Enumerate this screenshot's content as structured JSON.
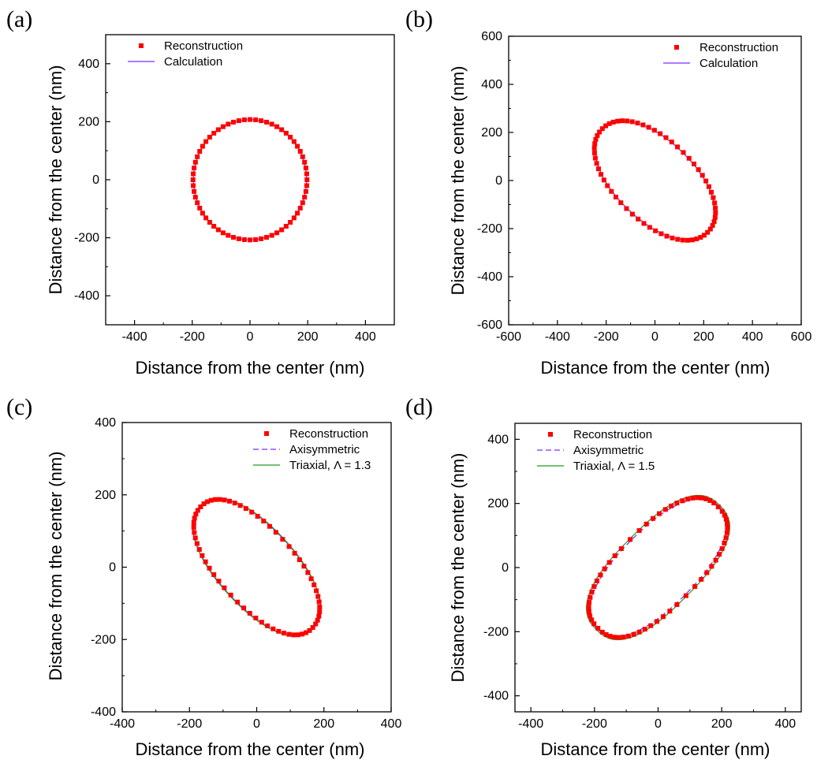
{
  "chart_data": [
    {
      "panel": "(a)",
      "type": "scatter",
      "xlabel": "Distance from the center (nm)",
      "ylabel": "Distance from the center (nm)",
      "xlim": [
        -500,
        500
      ],
      "ylim": [
        -500,
        500
      ],
      "xticks": [
        -400,
        -200,
        0,
        200,
        400
      ],
      "yticks": [
        -400,
        -200,
        0,
        200,
        400
      ],
      "xtick_labels": [
        "-400",
        "-200",
        "0",
        "200",
        "400"
      ],
      "ytick_labels": [
        "-400",
        "-200",
        "0",
        "200",
        "400"
      ],
      "legend_position": "top-left",
      "series": [
        {
          "name": "Reconstruction",
          "kind": "markers",
          "color": "#ff0000",
          "curve": {
            "shape": "ellipse",
            "a": 395,
            "b": 415,
            "rotation_deg": 0,
            "squareness": 0,
            "cx": 0,
            "cy": 0
          },
          "n_points": 64
        },
        {
          "name": "Calculation",
          "kind": "solid",
          "color": "#7b2cff",
          "curve": {
            "shape": "ellipse",
            "a": 392,
            "b": 414,
            "rotation_deg": 0,
            "squareness": 0,
            "cx": 0,
            "cy": 0
          }
        }
      ]
    },
    {
      "panel": "(b)",
      "type": "scatter",
      "xlabel": "Distance from the center (nm)",
      "ylabel": "Distance from the center (nm)",
      "xlim": [
        -600,
        600
      ],
      "ylim": [
        -600,
        600
      ],
      "xticks": [
        -600,
        -400,
        -200,
        0,
        200,
        400,
        600
      ],
      "yticks": [
        -600,
        -400,
        -200,
        0,
        200,
        400,
        600
      ],
      "xtick_labels": [
        "-600",
        "-400",
        "-200",
        "0",
        "200",
        "400",
        "600"
      ],
      "ytick_labels": [
        "-600",
        "-400",
        "-200",
        "0",
        "200",
        "400",
        "600"
      ],
      "legend_position": "top-right",
      "series": [
        {
          "name": "Reconstruction",
          "kind": "markers",
          "color": "#ff0000",
          "curve": {
            "shape": "ellipse",
            "a": 610,
            "b": 330,
            "rotation_deg": -45,
            "squareness": 0.05,
            "cx": 0,
            "cy": 0
          },
          "n_points": 64
        },
        {
          "name": "Calculation",
          "kind": "solid",
          "color": "#7b2cff",
          "curve": {
            "shape": "ellipse",
            "a": 605,
            "b": 325,
            "rotation_deg": -45,
            "squareness": 0.05,
            "cx": 0,
            "cy": 0
          }
        }
      ]
    },
    {
      "panel": "(c)",
      "type": "scatter",
      "xlabel": "Distance from the center (nm)",
      "ylabel": "Distance from the center (nm)",
      "xlim": [
        -400,
        400
      ],
      "ylim": [
        -400,
        400
      ],
      "xticks": [
        -400,
        -200,
        0,
        200,
        400
      ],
      "yticks": [
        -400,
        -200,
        0,
        200,
        400
      ],
      "xtick_labels": [
        "-400",
        "-200",
        "0",
        "200",
        "400"
      ],
      "ytick_labels": [
        "-400",
        "-200",
        "0",
        "200",
        "400"
      ],
      "legend_position": "top-right",
      "series": [
        {
          "name": "Reconstruction",
          "kind": "markers",
          "color": "#ff0000",
          "curve": {
            "shape": "ellipse",
            "a": 472,
            "b": 218,
            "rotation_deg": -45,
            "squareness": 0.08,
            "cx": 0,
            "cy": 0
          },
          "n_points": 64
        },
        {
          "name": "Axisymmetric",
          "kind": "dashed",
          "color": "#7b2cff",
          "curve": {
            "shape": "ellipse",
            "a": 476,
            "b": 222,
            "rotation_deg": -45,
            "squareness": 0.08,
            "cx": 0,
            "cy": 0
          }
        },
        {
          "name": "Triaxial, Λ = 1.3",
          "kind": "solid",
          "color": "#1f9e1f",
          "curve": {
            "shape": "ellipse",
            "a": 478,
            "b": 225,
            "rotation_deg": -45,
            "squareness": 0.08,
            "cx": 0,
            "cy": 0
          }
        }
      ]
    },
    {
      "panel": "(d)",
      "type": "scatter",
      "xlabel": "Distance from the center (nm)",
      "ylabel": "Distance from the center (nm)",
      "xlim": [
        -450,
        450
      ],
      "ylim": [
        -450,
        450
      ],
      "xticks": [
        -400,
        -200,
        0,
        200,
        400
      ],
      "yticks": [
        -400,
        -200,
        0,
        200,
        400
      ],
      "xtick_labels": [
        "-400",
        "-200",
        "0",
        "200",
        "400"
      ],
      "ytick_labels": [
        "-400",
        "-200",
        "0",
        "200",
        "400"
      ],
      "legend_position": "top-left",
      "series": [
        {
          "name": "Reconstruction",
          "kind": "markers",
          "color": "#ff0000",
          "curve": {
            "shape": "ellipse",
            "a": 535,
            "b": 248,
            "rotation_deg": 45,
            "squareness": 0.18,
            "cx": 0,
            "cy": 0
          },
          "n_points": 64
        },
        {
          "name": "Axisymmetric",
          "kind": "dashed",
          "color": "#7b2cff",
          "curve": {
            "shape": "ellipse",
            "a": 540,
            "b": 240,
            "rotation_deg": 45,
            "squareness": 0.12,
            "cx": 0,
            "cy": 0
          }
        },
        {
          "name": "Triaxial, Λ = 1.5",
          "kind": "solid",
          "color": "#1f9e1f",
          "curve": {
            "shape": "ellipse",
            "a": 548,
            "b": 252,
            "rotation_deg": 45,
            "squareness": 0.22,
            "cx": 0,
            "cy": 0
          }
        }
      ]
    }
  ]
}
